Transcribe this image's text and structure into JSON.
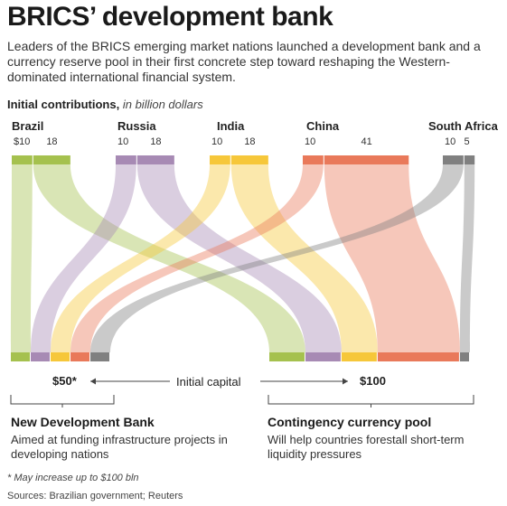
{
  "header": {
    "title": "BRICS’ development bank",
    "subtitle": "Leaders of the BRICS emerging market nations launched a development bank and a currency reserve pool in their first concrete step toward reshaping the Western-dominated international financial system."
  },
  "chart_data": {
    "type": "sankey",
    "label": "Initial contributions,",
    "unit": "in billion dollars",
    "countries": [
      {
        "name": "Brazil",
        "color": "#a5c14e",
        "bank": 10,
        "pool": 18,
        "bank_label": "$10",
        "pool_label": "18"
      },
      {
        "name": "Russia",
        "color": "#a78ab4",
        "bank": 10,
        "pool": 18,
        "bank_label": "10",
        "pool_label": "18"
      },
      {
        "name": "India",
        "color": "#f6c73a",
        "bank": 10,
        "pool": 18,
        "bank_label": "10",
        "pool_label": "18"
      },
      {
        "name": "China",
        "color": "#e9795a",
        "bank": 10,
        "pool": 41,
        "bank_label": "10",
        "pool_label": "41"
      },
      {
        "name": "South Africa",
        "color": "#808080",
        "bank": 10,
        "pool": 5,
        "bank_label": "10",
        "pool_label": "5"
      }
    ],
    "bank_total": "$50*",
    "pool_total": "$100",
    "flow_label": "Initial capital"
  },
  "bank": {
    "title": "New Development Bank",
    "description": "Aimed at funding infrastructure projects in developing nations"
  },
  "pool": {
    "title": "Contingency currency pool",
    "description": "Will help countries forestall short-term liquidity pressures"
  },
  "footnote": "* May increase up to $100 bln",
  "source": "Sources: Brazilian government; Reuters"
}
